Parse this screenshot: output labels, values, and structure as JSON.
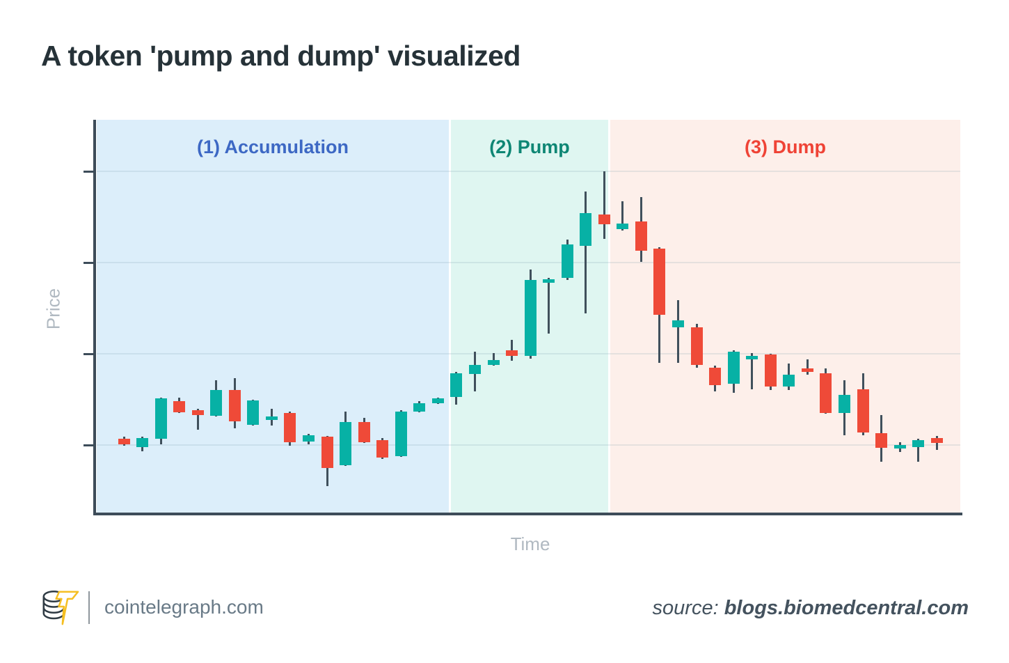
{
  "title": {
    "text": "A token 'pump and dump' visualized"
  },
  "axis": {
    "price_label": "Price",
    "time_label": "Time"
  },
  "chart_data": {
    "type": "candlestick",
    "title": "A token 'pump and dump' visualized",
    "xlabel": "Time",
    "ylabel": "Price",
    "ylim": [
      0.26,
      4.56
    ],
    "gridline_values": [
      1,
      2,
      3,
      4
    ],
    "x_tick_labels": [],
    "y_tick_labels": [],
    "grid": true,
    "up_color": "#07b1a5",
    "down_color": "#ef4a38",
    "wick_color": "#40505c",
    "phases": [
      {
        "label": "(1) Accumulation",
        "color": "#3d68c4",
        "bg": "#dceefa",
        "candle_range": [
          1,
          18
        ]
      },
      {
        "label": "(2) Pump",
        "color": "#0e8674",
        "bg": "#dff6f1",
        "candle_range": [
          19,
          27
        ]
      },
      {
        "label": "(3) Dump",
        "color": "#ef4336",
        "bg": "#fdefea",
        "candle_range": [
          28,
          45
        ]
      }
    ],
    "candles": [
      {
        "o": 1.07,
        "h": 1.09,
        "l": 0.99,
        "c": 1.01
      },
      {
        "o": 0.98,
        "h": 1.09,
        "l": 0.93,
        "c": 1.08
      },
      {
        "o": 1.07,
        "h": 1.52,
        "l": 1.01,
        "c": 1.51
      },
      {
        "o": 1.48,
        "h": 1.52,
        "l": 1.35,
        "c": 1.36
      },
      {
        "o": 1.38,
        "h": 1.4,
        "l": 1.17,
        "c": 1.33
      },
      {
        "o": 1.32,
        "h": 1.71,
        "l": 1.31,
        "c": 1.6
      },
      {
        "o": 1.6,
        "h": 1.73,
        "l": 1.18,
        "c": 1.26
      },
      {
        "o": 1.22,
        "h": 1.5,
        "l": 1.21,
        "c": 1.49
      },
      {
        "o": 1.3,
        "h": 1.4,
        "l": 1.21,
        "c": 1.31
      },
      {
        "o": 1.35,
        "h": 1.37,
        "l": 0.99,
        "c": 1.03
      },
      {
        "o": 1.04,
        "h": 1.12,
        "l": 1.01,
        "c": 1.11
      },
      {
        "o": 1.09,
        "h": 1.1,
        "l": 0.55,
        "c": 0.75
      },
      {
        "o": 0.78,
        "h": 1.37,
        "l": 0.77,
        "c": 1.25
      },
      {
        "o": 1.25,
        "h": 1.3,
        "l": 1.02,
        "c": 1.03
      },
      {
        "o": 1.05,
        "h": 1.08,
        "l": 0.85,
        "c": 0.86
      },
      {
        "o": 0.88,
        "h": 1.38,
        "l": 0.87,
        "c": 1.37
      },
      {
        "o": 1.37,
        "h": 1.48,
        "l": 1.36,
        "c": 1.46
      },
      {
        "o": 1.46,
        "h": 1.52,
        "l": 1.45,
        "c": 1.51
      },
      {
        "o": 1.53,
        "h": 1.8,
        "l": 1.44,
        "c": 1.79
      },
      {
        "o": 1.78,
        "h": 2.02,
        "l": 1.59,
        "c": 1.88
      },
      {
        "o": 1.88,
        "h": 2.01,
        "l": 1.87,
        "c": 1.93
      },
      {
        "o": 2.04,
        "h": 2.15,
        "l": 1.92,
        "c": 1.98
      },
      {
        "o": 1.98,
        "h": 2.92,
        "l": 1.95,
        "c": 2.81
      },
      {
        "o": 2.8,
        "h": 2.83,
        "l": 2.22,
        "c": 2.82
      },
      {
        "o": 2.83,
        "h": 3.25,
        "l": 2.81,
        "c": 3.2
      },
      {
        "o": 3.18,
        "h": 3.78,
        "l": 2.44,
        "c": 3.54
      },
      {
        "o": 3.53,
        "h": 4.0,
        "l": 3.26,
        "c": 3.42
      },
      {
        "o": 3.37,
        "h": 3.67,
        "l": 3.35,
        "c": 3.43
      },
      {
        "o": 3.45,
        "h": 3.72,
        "l": 3.01,
        "c": 3.13
      },
      {
        "o": 3.15,
        "h": 3.17,
        "l": 1.9,
        "c": 2.43
      },
      {
        "o": 2.29,
        "h": 2.59,
        "l": 1.9,
        "c": 2.37
      },
      {
        "o": 2.29,
        "h": 2.33,
        "l": 1.85,
        "c": 1.88
      },
      {
        "o": 1.85,
        "h": 1.87,
        "l": 1.59,
        "c": 1.66
      },
      {
        "o": 1.67,
        "h": 2.04,
        "l": 1.57,
        "c": 2.02
      },
      {
        "o": 1.94,
        "h": 2.01,
        "l": 1.61,
        "c": 1.98
      },
      {
        "o": 1.99,
        "h": 2.0,
        "l": 1.6,
        "c": 1.64
      },
      {
        "o": 1.64,
        "h": 1.89,
        "l": 1.6,
        "c": 1.77
      },
      {
        "o": 1.84,
        "h": 1.94,
        "l": 1.77,
        "c": 1.8
      },
      {
        "o": 1.79,
        "h": 1.84,
        "l": 1.34,
        "c": 1.35
      },
      {
        "o": 1.35,
        "h": 1.71,
        "l": 1.11,
        "c": 1.55
      },
      {
        "o": 1.61,
        "h": 1.79,
        "l": 1.11,
        "c": 1.14
      },
      {
        "o": 1.13,
        "h": 1.33,
        "l": 0.82,
        "c": 0.97
      },
      {
        "o": 0.96,
        "h": 1.03,
        "l": 0.92,
        "c": 1.0
      },
      {
        "o": 0.98,
        "h": 1.07,
        "l": 0.82,
        "c": 1.05
      },
      {
        "o": 1.08,
        "h": 1.1,
        "l": 0.95,
        "c": 1.02
      }
    ]
  },
  "footer": {
    "site": "cointelegraph.com",
    "source_prefix": "source:",
    "source_domain": "blogs.biomedcentral.com",
    "logo_icon": "cointelegraph-coin-lightning-logo",
    "logo_coin_color": "#2f3b44",
    "logo_bolt_color": "#f5bf23"
  }
}
